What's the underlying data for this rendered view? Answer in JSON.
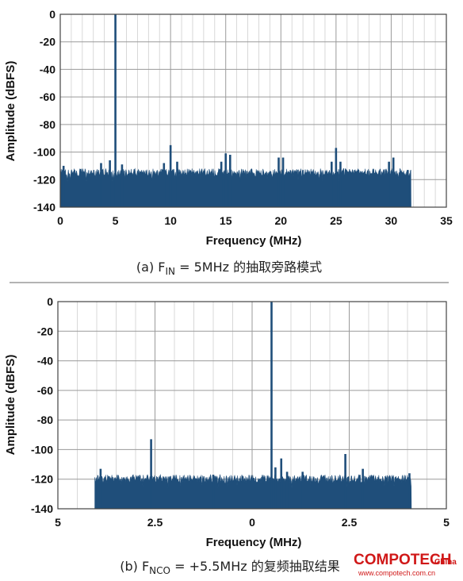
{
  "chart_data": [
    {
      "type": "line",
      "xlabel": "Frequency (MHz)",
      "ylabel": "Amplitude (dBFS)",
      "xlim": [
        0,
        35
      ],
      "ylim": [
        -140,
        0
      ],
      "xticks": [
        "0",
        "5",
        "10",
        "15",
        "20",
        "25",
        "30",
        "35"
      ],
      "yticks": [
        "0",
        "-20",
        "-40",
        "-60",
        "-80",
        "-100",
        "-120",
        "-140"
      ],
      "grid": true,
      "color": "#1f4e7a",
      "noise_floor": {
        "x_range": [
          0,
          31.8
        ],
        "top_dBFS": -112,
        "bottom_dBFS": -140
      },
      "spurs": [
        {
          "x": 0.3,
          "y": -110
        },
        {
          "x": 3.7,
          "y": -108
        },
        {
          "x": 4.5,
          "y": -106
        },
        {
          "x": 5.0,
          "y": 0
        },
        {
          "x": 5.6,
          "y": -109
        },
        {
          "x": 9.4,
          "y": -108
        },
        {
          "x": 10.0,
          "y": -95
        },
        {
          "x": 10.6,
          "y": -107
        },
        {
          "x": 14.6,
          "y": -107
        },
        {
          "x": 15.0,
          "y": -101
        },
        {
          "x": 15.4,
          "y": -102
        },
        {
          "x": 19.8,
          "y": -104
        },
        {
          "x": 20.2,
          "y": -104
        },
        {
          "x": 24.6,
          "y": -107
        },
        {
          "x": 25.0,
          "y": -97
        },
        {
          "x": 25.4,
          "y": -107
        },
        {
          "x": 29.8,
          "y": -107
        },
        {
          "x": 30.2,
          "y": -104
        },
        {
          "x": 31.5,
          "y": -113
        }
      ]
    },
    {
      "type": "line",
      "xlabel": "Frequency (MHz)",
      "ylabel": "Amplitude (dBFS)",
      "xlim": [
        -5,
        5
      ],
      "ylim": [
        -140,
        0
      ],
      "xticks": [
        "5",
        "2.5",
        "0",
        "2.5",
        "5"
      ],
      "yticks": [
        "0",
        "-20",
        "-40",
        "-60",
        "-80",
        "-100",
        "-120",
        "-140"
      ],
      "grid": true,
      "color": "#1f4e7a",
      "noise_floor": {
        "x_range": [
          -4.05,
          4.1
        ],
        "top_dBFS": -117,
        "bottom_dBFS": -140
      },
      "spurs": [
        {
          "x": -3.9,
          "y": -113
        },
        {
          "x": -2.6,
          "y": -93
        },
        {
          "x": -1.0,
          "y": -117
        },
        {
          "x": 0.5,
          "y": 0
        },
        {
          "x": 0.6,
          "y": -112
        },
        {
          "x": 0.75,
          "y": -106
        },
        {
          "x": 0.9,
          "y": -115
        },
        {
          "x": 1.3,
          "y": -115
        },
        {
          "x": 2.4,
          "y": -103
        },
        {
          "x": 2.85,
          "y": -113
        },
        {
          "x": 4.05,
          "y": -116
        }
      ]
    }
  ],
  "captions": {
    "a": {
      "prefix": "(a) F",
      "sub": "IN",
      "suffix": " = 5MHz 的抽取旁路模式"
    },
    "b": {
      "prefix": "(b) F",
      "sub": "NCO",
      "suffix": " = +5.5MHz 的复频抽取结果"
    }
  },
  "watermark": {
    "brand": "COMPOTECH",
    "suffix": "China",
    "url": "www.compotech.com.cn"
  }
}
